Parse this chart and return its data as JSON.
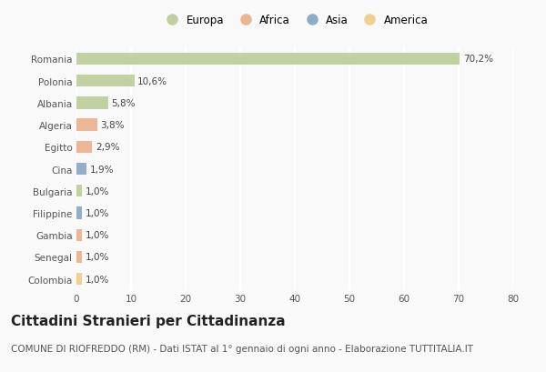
{
  "categories": [
    "Romania",
    "Polonia",
    "Albania",
    "Algeria",
    "Egitto",
    "Cina",
    "Bulgaria",
    "Filippine",
    "Gambia",
    "Senegal",
    "Colombia"
  ],
  "values": [
    70.2,
    10.6,
    5.8,
    3.8,
    2.9,
    1.9,
    1.0,
    1.0,
    1.0,
    1.0,
    1.0
  ],
  "labels": [
    "70,2%",
    "10,6%",
    "5,8%",
    "3,8%",
    "2,9%",
    "1,9%",
    "1,0%",
    "1,0%",
    "1,0%",
    "1,0%",
    "1,0%"
  ],
  "colors": [
    "#b5c98e",
    "#b5c98e",
    "#b5c98e",
    "#e8a97e",
    "#e8a97e",
    "#7a9fc2",
    "#b5c98e",
    "#7a9fc2",
    "#e8a97e",
    "#e8a97e",
    "#f0c97a"
  ],
  "legend": [
    {
      "label": "Europa",
      "color": "#b5c98e"
    },
    {
      "label": "Africa",
      "color": "#e8a97e"
    },
    {
      "label": "Asia",
      "color": "#7a9fc2"
    },
    {
      "label": "America",
      "color": "#f0c97a"
    }
  ],
  "xlim": [
    0,
    80
  ],
  "xticks": [
    0,
    10,
    20,
    30,
    40,
    50,
    60,
    70,
    80
  ],
  "title": "Cittadini Stranieri per Cittadinanza",
  "subtitle": "COMUNE DI RIOFREDDO (RM) - Dati ISTAT al 1° gennaio di ogni anno - Elaborazione TUTTITALIA.IT",
  "background_color": "#f9f9f9",
  "grid_color": "#ffffff",
  "bar_height": 0.55,
  "title_fontsize": 11,
  "subtitle_fontsize": 7.5,
  "label_fontsize": 7.5,
  "tick_fontsize": 7.5,
  "legend_fontsize": 8.5
}
